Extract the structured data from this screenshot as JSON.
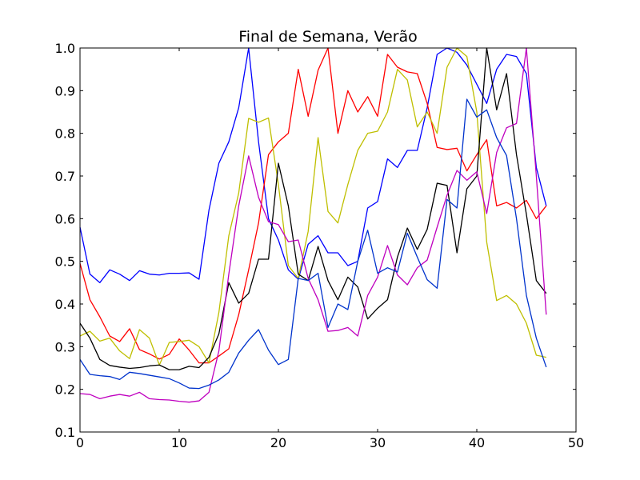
{
  "chart_data": {
    "type": "line",
    "title": "Final de Semana, Verão",
    "xlabel": "",
    "ylabel": "",
    "xlim": [
      0,
      50
    ],
    "ylim": [
      0.1,
      1.0
    ],
    "x_ticks": [
      "0",
      "10",
      "20",
      "30",
      "40",
      "50"
    ],
    "y_ticks": [
      "0.1",
      "0.2",
      "0.3",
      "0.4",
      "0.5",
      "0.6",
      "0.7",
      "0.8",
      "0.9",
      "1.0"
    ],
    "grid": false,
    "legend": "none",
    "x": [
      0,
      1,
      2,
      3,
      4,
      5,
      6,
      7,
      8,
      9,
      10,
      11,
      12,
      13,
      14,
      15,
      16,
      17,
      18,
      19,
      20,
      21,
      22,
      23,
      24,
      25,
      26,
      27,
      28,
      29,
      30,
      31,
      32,
      33,
      34,
      35,
      36,
      37,
      38,
      39,
      40,
      41,
      42,
      43,
      44,
      45,
      46,
      47
    ],
    "series": [
      {
        "color": "#0000ff",
        "values": [
          0.58,
          0.47,
          0.45,
          0.48,
          0.47,
          0.455,
          0.478,
          0.47,
          0.468,
          0.472,
          0.472,
          0.473,
          0.458,
          0.62,
          0.73,
          0.78,
          0.86,
          1.0,
          0.78,
          0.6,
          0.55,
          0.48,
          0.458,
          0.54,
          0.56,
          0.52,
          0.52,
          0.49,
          0.5,
          0.625,
          0.64,
          0.74,
          0.72,
          0.76,
          0.76,
          0.86,
          0.985,
          1.0,
          0.99,
          0.96,
          0.915,
          0.87,
          0.95,
          0.985,
          0.98,
          0.94,
          0.72,
          0.63
        ]
      },
      {
        "color": "#ff0000",
        "values": [
          0.495,
          0.41,
          0.37,
          0.325,
          0.312,
          0.342,
          0.293,
          0.283,
          0.271,
          0.282,
          0.318,
          0.292,
          0.262,
          0.262,
          0.278,
          0.295,
          0.375,
          0.48,
          0.59,
          0.75,
          0.78,
          0.8,
          0.95,
          0.84,
          0.948,
          1.0,
          0.8,
          0.9,
          0.85,
          0.886,
          0.84,
          0.985,
          0.955,
          0.944,
          0.94,
          0.87,
          0.767,
          0.762,
          0.765,
          0.712,
          0.75,
          0.785,
          0.63,
          0.638,
          0.625,
          0.643,
          0.6,
          0.63
        ]
      },
      {
        "color": "#bfbf00",
        "values": [
          0.325,
          0.336,
          0.313,
          0.32,
          0.29,
          0.272,
          0.34,
          0.32,
          0.257,
          0.31,
          0.312,
          0.315,
          0.3,
          0.262,
          0.38,
          0.56,
          0.66,
          0.835,
          0.826,
          0.836,
          0.68,
          0.49,
          0.46,
          0.57,
          0.79,
          0.617,
          0.59,
          0.68,
          0.76,
          0.8,
          0.805,
          0.85,
          0.95,
          0.925,
          0.815,
          0.85,
          0.8,
          0.955,
          1.0,
          0.98,
          0.85,
          0.545,
          0.408,
          0.42,
          0.4,
          0.355,
          0.28,
          0.275
        ]
      },
      {
        "color": "#000000",
        "values": [
          0.355,
          0.32,
          0.27,
          0.256,
          0.252,
          0.249,
          0.251,
          0.255,
          0.257,
          0.246,
          0.246,
          0.254,
          0.251,
          0.275,
          0.33,
          0.45,
          0.402,
          0.425,
          0.505,
          0.505,
          0.73,
          0.63,
          0.47,
          0.455,
          0.535,
          0.455,
          0.41,
          0.463,
          0.44,
          0.365,
          0.39,
          0.41,
          0.51,
          0.578,
          0.528,
          0.575,
          0.683,
          0.678,
          0.52,
          0.67,
          0.7,
          1.0,
          0.855,
          0.94,
          0.75,
          0.61,
          0.455,
          0.425
        ]
      },
      {
        "color": "#bf00bf",
        "values": [
          0.19,
          0.188,
          0.178,
          0.184,
          0.188,
          0.184,
          0.193,
          0.178,
          0.176,
          0.175,
          0.172,
          0.17,
          0.173,
          0.193,
          0.29,
          0.47,
          0.63,
          0.747,
          0.65,
          0.593,
          0.586,
          0.546,
          0.55,
          0.46,
          0.41,
          0.336,
          0.338,
          0.345,
          0.325,
          0.42,
          0.463,
          0.537,
          0.468,
          0.445,
          0.485,
          0.503,
          0.58,
          0.655,
          0.713,
          0.69,
          0.71,
          0.612,
          0.755,
          0.813,
          0.823,
          1.0,
          0.7,
          0.375
        ]
      },
      {
        "color": "#0033cc",
        "values": [
          0.27,
          0.235,
          0.232,
          0.23,
          0.223,
          0.24,
          0.237,
          0.233,
          0.229,
          0.225,
          0.215,
          0.203,
          0.202,
          0.21,
          0.222,
          0.24,
          0.285,
          0.315,
          0.34,
          0.292,
          0.258,
          0.27,
          0.46,
          0.455,
          0.472,
          0.345,
          0.4,
          0.387,
          0.5,
          0.573,
          0.472,
          0.485,
          0.475,
          0.566,
          0.51,
          0.457,
          0.437,
          0.645,
          0.625,
          0.88,
          0.838,
          0.855,
          0.79,
          0.748,
          0.6,
          0.42,
          0.32,
          0.252
        ]
      }
    ]
  }
}
